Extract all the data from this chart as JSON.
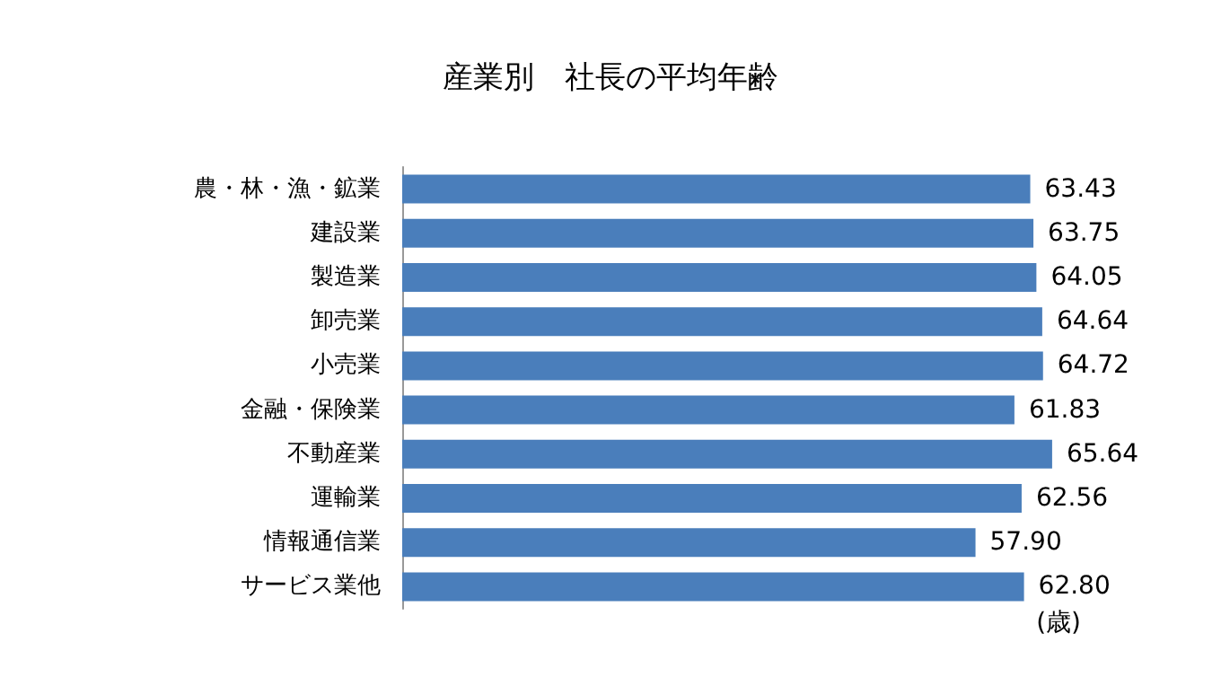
{
  "chart_data": {
    "type": "bar",
    "orientation": "horizontal",
    "title": "産業別　社長の平均年齢",
    "categories": [
      "農・林・漁・鉱業",
      "建設業",
      "製造業",
      "卸売業",
      "小売業",
      "金融・保険業",
      "不動産業",
      "運輸業",
      "情報通信業",
      "サービス業他"
    ],
    "values": [
      63.43,
      63.75,
      64.05,
      64.64,
      64.72,
      61.83,
      65.64,
      62.56,
      57.9,
      62.8
    ],
    "value_labels": [
      "63.43",
      "63.75",
      "64.05",
      "64.64",
      "64.72",
      "61.83",
      "65.64",
      "62.56",
      "57.90",
      "62.80"
    ],
    "color": "#4a7ebb",
    "tick_labels": "y",
    "annotations": [
      "(歳)"
    ]
  }
}
